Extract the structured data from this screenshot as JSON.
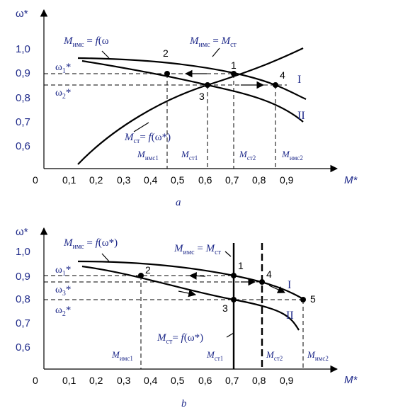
{
  "diagrams": [
    {
      "caption": "a",
      "y_axis_label": "ω*",
      "x_axis_label": "M*",
      "origin_label": "0",
      "y_ticks": [
        "1,0",
        "0,9",
        "0,8",
        "0,7",
        "0,6"
      ],
      "x_ticks": [
        "0,1",
        "0,2",
        "0,3",
        "0,4",
        "0,5",
        "0,6",
        "0,7",
        "0,8",
        "0,9"
      ],
      "motor_curve_label": "M_имс = f(ω",
      "balance_label": "M_имс = M_ст",
      "load_curve_label": "M_ст = f(ω*)",
      "omega_labels": [
        "ω1*",
        "ω2*"
      ],
      "point_labels": [
        "1",
        "2",
        "3",
        "4"
      ],
      "curve_roman": [
        "I",
        "II"
      ],
      "moment_labels": [
        "Mимс1",
        "Mст1",
        "Mст2",
        "Mимс2"
      ]
    },
    {
      "caption": "b",
      "y_axis_label": "ω*",
      "x_axis_label": "M*",
      "origin_label": "0",
      "y_ticks": [
        "1,0",
        "0,9",
        "0,8",
        "0,7",
        "0,6"
      ],
      "x_ticks": [
        "0,1",
        "0,2",
        "0,3",
        "0,4",
        "0,5",
        "0,6",
        "0,7",
        "0,8",
        "0,9"
      ],
      "motor_curve_label": "M_имс = f(ω*)",
      "balance_label": "M_имс = M_ст",
      "load_curve_label": "M_ст = f(ω*)",
      "omega_labels": [
        "ω1*",
        "ω3*",
        "ω2*"
      ],
      "point_labels": [
        "1",
        "2",
        "3",
        "4",
        "5"
      ],
      "curve_roman": [
        "I",
        "II"
      ],
      "moment_labels": [
        "Mимс1",
        "Mст1",
        "Mст2",
        "Mимс2"
      ]
    }
  ]
}
